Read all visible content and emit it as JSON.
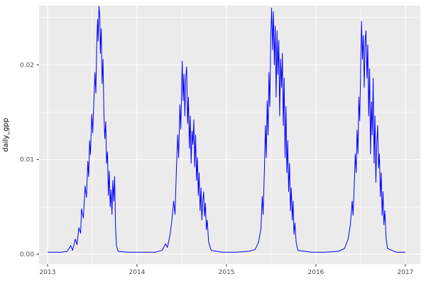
{
  "figure": {
    "background": "#FFFFFF",
    "panel_background": "#EBEBEB",
    "grid_color": "#FFFFFF",
    "tick_text_color": "#4D4D4D",
    "axis_title_color": "#000000"
  },
  "chart_data": {
    "type": "line",
    "title": "",
    "xlabel": "",
    "ylabel": "daily_gpp",
    "legend": "none",
    "grid": "major-and-minor-white-on-gray-panel",
    "line_color": "#0000FF",
    "line_width": 1,
    "xlim": [
      2012.905,
      2017.167
    ],
    "ylim": [
      -0.00105,
      0.02625
    ],
    "x_ticks": [
      2013,
      2014,
      2015,
      2016,
      2017
    ],
    "x_tick_labels": [
      "2013",
      "2014",
      "2015",
      "2016",
      "2017"
    ],
    "x_minor_ticks": [
      2013.5,
      2014.5,
      2015.5,
      2016.5
    ],
    "y_ticks": [
      0.0,
      0.01,
      0.02
    ],
    "y_tick_labels": [
      "0.00",
      "0.01",
      "0.02"
    ],
    "y_minor_ticks": [
      0.005,
      0.015,
      0.025
    ],
    "series": [
      {
        "name": "daily_gpp",
        "points": [
          [
            2013.0,
            0.0002
          ],
          [
            2013.15,
            0.0002
          ],
          [
            2013.22,
            0.0003
          ],
          [
            2013.26,
            0.0009
          ],
          [
            2013.28,
            0.0004
          ],
          [
            2013.31,
            0.0016
          ],
          [
            2013.33,
            0.001
          ],
          [
            2013.35,
            0.0028
          ],
          [
            2013.37,
            0.0022
          ],
          [
            2013.38,
            0.0048
          ],
          [
            2013.4,
            0.0038
          ],
          [
            2013.42,
            0.0072
          ],
          [
            2013.435,
            0.006
          ],
          [
            2013.45,
            0.0098
          ],
          [
            2013.46,
            0.0082
          ],
          [
            2013.47,
            0.012
          ],
          [
            2013.48,
            0.0105
          ],
          [
            2013.495,
            0.0148
          ],
          [
            2013.505,
            0.0128
          ],
          [
            2013.52,
            0.0168
          ],
          [
            2013.53,
            0.0192
          ],
          [
            2013.54,
            0.017
          ],
          [
            2013.55,
            0.0222
          ],
          [
            2013.56,
            0.0248
          ],
          [
            2013.565,
            0.0225
          ],
          [
            2013.575,
            0.0262
          ],
          [
            2013.585,
            0.025
          ],
          [
            2013.59,
            0.0212
          ],
          [
            2013.6,
            0.0238
          ],
          [
            2013.61,
            0.018
          ],
          [
            2013.62,
            0.0206
          ],
          [
            2013.63,
            0.015
          ],
          [
            2013.64,
            0.0122
          ],
          [
            2013.65,
            0.014
          ],
          [
            2013.66,
            0.0096
          ],
          [
            2013.67,
            0.0108
          ],
          [
            2013.68,
            0.0062
          ],
          [
            2013.69,
            0.0088
          ],
          [
            2013.7,
            0.005
          ],
          [
            2013.71,
            0.0068
          ],
          [
            2013.72,
            0.0042
          ],
          [
            2013.73,
            0.0078
          ],
          [
            2013.74,
            0.0056
          ],
          [
            2013.75,
            0.0082
          ],
          [
            2013.76,
            0.003
          ],
          [
            2013.77,
            0.0009
          ],
          [
            2013.79,
            0.0003
          ],
          [
            2013.9,
            0.0002
          ],
          [
            2014.05,
            0.0002
          ],
          [
            2014.2,
            0.0002
          ],
          [
            2014.28,
            0.0004
          ],
          [
            2014.32,
            0.0011
          ],
          [
            2014.34,
            0.0007
          ],
          [
            2014.37,
            0.0021
          ],
          [
            2014.39,
            0.0036
          ],
          [
            2014.41,
            0.0056
          ],
          [
            2014.425,
            0.0042
          ],
          [
            2014.44,
            0.0088
          ],
          [
            2014.455,
            0.0126
          ],
          [
            2014.465,
            0.0102
          ],
          [
            2014.48,
            0.0158
          ],
          [
            2014.49,
            0.0132
          ],
          [
            2014.505,
            0.0204
          ],
          [
            2014.515,
            0.0162
          ],
          [
            2014.525,
            0.019
          ],
          [
            2014.535,
            0.0146
          ],
          [
            2014.545,
            0.0186
          ],
          [
            2014.555,
            0.0198
          ],
          [
            2014.565,
            0.0138
          ],
          [
            2014.575,
            0.0166
          ],
          [
            2014.585,
            0.0112
          ],
          [
            2014.595,
            0.0146
          ],
          [
            2014.605,
            0.0096
          ],
          [
            2014.615,
            0.013
          ],
          [
            2014.625,
            0.0116
          ],
          [
            2014.635,
            0.0142
          ],
          [
            2014.645,
            0.0092
          ],
          [
            2014.655,
            0.0126
          ],
          [
            2014.665,
            0.0078
          ],
          [
            2014.675,
            0.0102
          ],
          [
            2014.685,
            0.0062
          ],
          [
            2014.695,
            0.0086
          ],
          [
            2014.705,
            0.0046
          ],
          [
            2014.715,
            0.007
          ],
          [
            2014.725,
            0.0036
          ],
          [
            2014.735,
            0.0056
          ],
          [
            2014.745,
            0.0066
          ],
          [
            2014.755,
            0.004
          ],
          [
            2014.765,
            0.0054
          ],
          [
            2014.775,
            0.0026
          ],
          [
            2014.785,
            0.0036
          ],
          [
            2014.8,
            0.0013
          ],
          [
            2014.83,
            0.0004
          ],
          [
            2014.95,
            0.0002
          ],
          [
            2015.1,
            0.0002
          ],
          [
            2015.25,
            0.0003
          ],
          [
            2015.32,
            0.0005
          ],
          [
            2015.36,
            0.0013
          ],
          [
            2015.385,
            0.0027
          ],
          [
            2015.4,
            0.0061
          ],
          [
            2015.41,
            0.0042
          ],
          [
            2015.425,
            0.0092
          ],
          [
            2015.435,
            0.0136
          ],
          [
            2015.445,
            0.0102
          ],
          [
            2015.455,
            0.0162
          ],
          [
            2015.465,
            0.0126
          ],
          [
            2015.475,
            0.0192
          ],
          [
            2015.485,
            0.0156
          ],
          [
            2015.495,
            0.0227
          ],
          [
            2015.505,
            0.026
          ],
          [
            2015.515,
            0.0216
          ],
          [
            2015.525,
            0.0256
          ],
          [
            2015.535,
            0.02
          ],
          [
            2015.545,
            0.0241
          ],
          [
            2015.555,
            0.0166
          ],
          [
            2015.565,
            0.0236
          ],
          [
            2015.575,
            0.019
          ],
          [
            2015.585,
            0.0226
          ],
          [
            2015.595,
            0.0146
          ],
          [
            2015.605,
            0.0206
          ],
          [
            2015.615,
            0.0176
          ],
          [
            2015.625,
            0.0212
          ],
          [
            2015.635,
            0.0136
          ],
          [
            2015.645,
            0.0186
          ],
          [
            2015.655,
            0.0102
          ],
          [
            2015.665,
            0.0156
          ],
          [
            2015.675,
            0.0086
          ],
          [
            2015.685,
            0.012
          ],
          [
            2015.695,
            0.0066
          ],
          [
            2015.705,
            0.0096
          ],
          [
            2015.715,
            0.0046
          ],
          [
            2015.725,
            0.007
          ],
          [
            2015.735,
            0.0036
          ],
          [
            2015.745,
            0.0056
          ],
          [
            2015.755,
            0.0021
          ],
          [
            2015.765,
            0.0033
          ],
          [
            2015.78,
            0.0012
          ],
          [
            2015.8,
            0.0004
          ],
          [
            2015.95,
            0.0002
          ],
          [
            2016.1,
            0.0002
          ],
          [
            2016.25,
            0.0003
          ],
          [
            2016.32,
            0.0006
          ],
          [
            2016.36,
            0.0016
          ],
          [
            2016.385,
            0.0031
          ],
          [
            2016.405,
            0.0056
          ],
          [
            2016.415,
            0.0041
          ],
          [
            2016.43,
            0.0076
          ],
          [
            2016.44,
            0.0106
          ],
          [
            2016.45,
            0.0086
          ],
          [
            2016.46,
            0.0131
          ],
          [
            2016.47,
            0.0106
          ],
          [
            2016.48,
            0.0166
          ],
          [
            2016.49,
            0.0141
          ],
          [
            2016.5,
            0.0196
          ],
          [
            2016.51,
            0.0246
          ],
          [
            2016.52,
            0.0206
          ],
          [
            2016.53,
            0.0231
          ],
          [
            2016.54,
            0.0176
          ],
          [
            2016.55,
            0.0226
          ],
          [
            2016.56,
            0.0236
          ],
          [
            2016.57,
            0.0186
          ],
          [
            2016.58,
            0.0221
          ],
          [
            2016.59,
            0.0146
          ],
          [
            2016.6,
            0.0196
          ],
          [
            2016.61,
            0.0106
          ],
          [
            2016.62,
            0.0161
          ],
          [
            2016.63,
            0.0126
          ],
          [
            2016.64,
            0.0186
          ],
          [
            2016.65,
            0.0096
          ],
          [
            2016.66,
            0.0146
          ],
          [
            2016.67,
            0.0076
          ],
          [
            2016.68,
            0.0116
          ],
          [
            2016.69,
            0.0136
          ],
          [
            2016.7,
            0.0091
          ],
          [
            2016.71,
            0.0106
          ],
          [
            2016.72,
            0.0061
          ],
          [
            2016.73,
            0.0086
          ],
          [
            2016.74,
            0.0041
          ],
          [
            2016.75,
            0.0066
          ],
          [
            2016.76,
            0.0031
          ],
          [
            2016.77,
            0.0046
          ],
          [
            2016.785,
            0.0016
          ],
          [
            2016.8,
            0.0006
          ],
          [
            2016.9,
            0.0002
          ],
          [
            2017.0,
            0.0002
          ]
        ]
      }
    ]
  }
}
